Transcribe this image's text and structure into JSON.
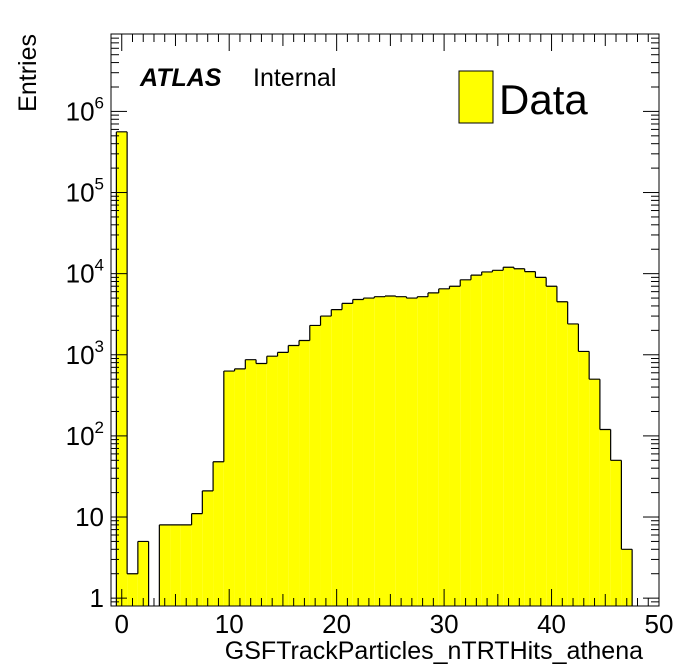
{
  "chart_data": {
    "type": "bar",
    "histogram_style": "step-filled",
    "xlabel": "GSFTrackParticles_nTRTHits_athena",
    "ylabel": "Entries",
    "xlim": [
      -1,
      50
    ],
    "ylim": [
      0.8,
      9000000
    ],
    "yscale": "log",
    "x_ticks": [
      "0",
      "10",
      "20",
      "30",
      "40",
      "50"
    ],
    "y_ticks": [
      {
        "value": 1,
        "base": "1",
        "exp": ""
      },
      {
        "value": 10,
        "base": "10",
        "exp": ""
      },
      {
        "value": 100,
        "base": "10",
        "exp": "2"
      },
      {
        "value": 1000,
        "base": "10",
        "exp": "3"
      },
      {
        "value": 10000,
        "base": "10",
        "exp": "4"
      },
      {
        "value": 100000,
        "base": "10",
        "exp": "5"
      },
      {
        "value": 1000000,
        "base": "10",
        "exp": "6"
      }
    ],
    "bin_edges": [
      -0.5,
      49.5
    ],
    "bin_width": 1,
    "values": [
      560000,
      2,
      5,
      0,
      8,
      8,
      8,
      11,
      21,
      48,
      630,
      670,
      870,
      780,
      960,
      1070,
      1300,
      1500,
      2300,
      3000,
      3600,
      4300,
      4800,
      5000,
      5200,
      5300,
      5200,
      5000,
      5200,
      5800,
      6500,
      7000,
      8400,
      9600,
      10500,
      11000,
      12000,
      11500,
      10600,
      9000,
      7000,
      4500,
      2400,
      1100,
      500,
      120,
      50,
      4,
      0,
      0
    ],
    "series": [
      {
        "name": "Data",
        "color": "#ffff00"
      }
    ],
    "legend": {
      "position": "top-right",
      "entries": [
        "Data"
      ]
    },
    "grid": false,
    "labels": {
      "atlas": "ATLAS",
      "status": "Internal"
    }
  }
}
